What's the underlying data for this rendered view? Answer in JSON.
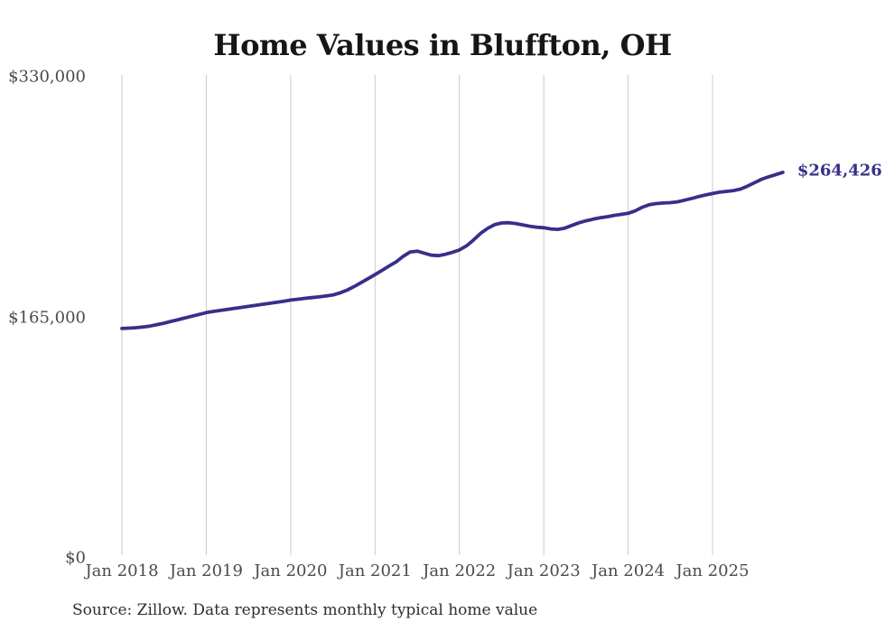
{
  "title": "Home Values in Bluffton, OH",
  "footer": {
    "source": "Source: Zillow. Data represents monthly typical home value"
  },
  "colors": {
    "line": "#37308a",
    "grid": "#cbcbcb",
    "axis_text": "#4b4b4b",
    "title_text": "#161616",
    "end_label_text": "#37308a"
  },
  "chart_data": {
    "type": "line",
    "title": "Home Values in Bluffton, OH",
    "xlabel": "",
    "ylabel": "",
    "ylim": [
      0,
      330000
    ],
    "grid": "vertical-only",
    "legend": "none",
    "x_start": "2018-01",
    "x_end": "2025-11",
    "x_freq": "monthly",
    "end_label": "$264,426",
    "end_value": 264426,
    "x_tick_labels": [
      "Jan 2018",
      "Jan 2019",
      "Jan 2020",
      "Jan 2021",
      "Jan 2022",
      "Jan 2023",
      "Jan 2024",
      "Jan 2025"
    ],
    "y_ticks": [
      {
        "label": "$0",
        "value": 0
      },
      {
        "label": "$165,000",
        "value": 165000
      },
      {
        "label": "$330,000",
        "value": 330000
      }
    ],
    "values": [
      157300,
      157600,
      157900,
      158400,
      159000,
      160000,
      161000,
      162200,
      163400,
      164600,
      165800,
      167000,
      168200,
      169000,
      169700,
      170400,
      171100,
      171800,
      172500,
      173200,
      173900,
      174600,
      175300,
      176000,
      176800,
      177400,
      178000,
      178500,
      179000,
      179600,
      180300,
      181700,
      183600,
      186000,
      188700,
      191500,
      194300,
      197200,
      200200,
      203000,
      206800,
      209800,
      210400,
      209000,
      207600,
      207300,
      208200,
      209500,
      211200,
      214000,
      218000,
      222500,
      226000,
      228500,
      229700,
      229900,
      229300,
      228400,
      227500,
      226800,
      226400,
      225600,
      225300,
      226200,
      228000,
      229800,
      231200,
      232300,
      233200,
      234000,
      234900,
      235600,
      236300,
      238000,
      240500,
      242200,
      243000,
      243400,
      243600,
      244200,
      245300,
      246500,
      247800,
      248900,
      249900,
      250800,
      251400,
      251900,
      253000,
      255000,
      257400,
      259700,
      261400,
      262900,
      264426
    ]
  }
}
